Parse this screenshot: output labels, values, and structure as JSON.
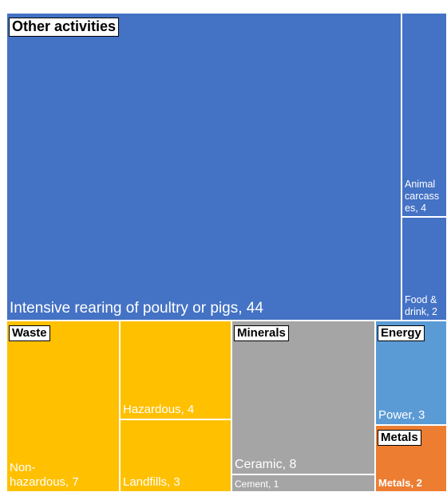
{
  "chart_data": {
    "type": "treemap",
    "groups": [
      {
        "name": "Other activities",
        "color": "#4472C4",
        "items": [
          {
            "label": "Intensive rearing of poultry or pigs, 44",
            "value": 44
          },
          {
            "label": "Animal carcass es, 4",
            "value": 4
          },
          {
            "label": "Food & drink, 2",
            "value": 2
          }
        ]
      },
      {
        "name": "Waste",
        "color": "#FFC000",
        "items": [
          {
            "label": "Non- hazardous, 7",
            "value": 7
          },
          {
            "label": "Hazardous, 4",
            "value": 4
          },
          {
            "label": "Landfills, 3",
            "value": 3
          }
        ]
      },
      {
        "name": "Minerals",
        "color": "#A5A5A5",
        "items": [
          {
            "label": "Ceramic, 8",
            "value": 8
          },
          {
            "label": "Cement, 1",
            "value": 1
          }
        ]
      },
      {
        "name": "Energy",
        "color": "#5B9BD5",
        "items": [
          {
            "label": "Power, 3",
            "value": 3
          }
        ]
      },
      {
        "name": "Metals",
        "color": "#ED7D31",
        "items": [
          {
            "label": "Metals, 2",
            "value": 2
          }
        ]
      }
    ]
  }
}
